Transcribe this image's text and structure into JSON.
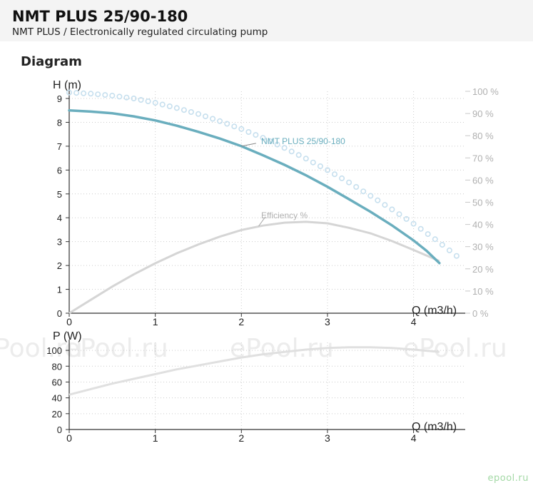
{
  "header": {
    "title": "NMT PLUS 25/90-180",
    "subtitle": "NMT PLUS / Electronically regulated circulating pump"
  },
  "section_title": "Diagram",
  "watermark": "ePool.ru",
  "brand": "epool.ru",
  "colors": {
    "head_curve": "#6aaebe",
    "max_curve_dots": "#c6dfee",
    "efficiency_curve": "#d5d5d5",
    "power_curve": "#e0e0e0",
    "axis": "#333333",
    "grid": "#cccccc",
    "right_axis_text": "#b0b0b0",
    "brand": "#a3d9a5"
  },
  "chart_data": [
    {
      "type": "line",
      "xlabel": "Q (m3/h)",
      "ylabel": "H (m)",
      "y2label": "",
      "xlim": [
        0,
        4.6
      ],
      "ylim": [
        0,
        9.3
      ],
      "y2lim": [
        0,
        100
      ],
      "xticks": [
        "0",
        "1",
        "2",
        "3",
        "4"
      ],
      "yticks": [
        "0",
        "1",
        "2",
        "3",
        "4",
        "5",
        "6",
        "7",
        "8",
        "9"
      ],
      "y2ticks": [
        "0 %",
        "10 %",
        "20 %",
        "30 %",
        "40 %",
        "50 %",
        "60 %",
        "70 %",
        "80 %",
        "90 %",
        "100 %"
      ],
      "grid": true,
      "series": [
        {
          "name": "NMT PLUS 25/90-180",
          "axis": "left",
          "style": "solid",
          "x": [
            0,
            0.25,
            0.5,
            0.75,
            1,
            1.25,
            1.5,
            1.75,
            2,
            2.25,
            2.5,
            2.75,
            3,
            3.25,
            3.5,
            3.75,
            4,
            4.15,
            4.3
          ],
          "y": [
            8.5,
            8.45,
            8.38,
            8.25,
            8.08,
            7.86,
            7.6,
            7.32,
            7.0,
            6.62,
            6.22,
            5.78,
            5.3,
            4.78,
            4.25,
            3.68,
            3.05,
            2.62,
            2.1
          ]
        },
        {
          "name": "",
          "axis": "left",
          "style": "dotted",
          "x": [
            0,
            0.25,
            0.5,
            0.75,
            1,
            1.25,
            1.5,
            1.75,
            2,
            2.25,
            2.5,
            2.75,
            3,
            3.25,
            3.5,
            3.75,
            4,
            4.25,
            4.5
          ],
          "y": [
            9.25,
            9.2,
            9.12,
            9.0,
            8.82,
            8.6,
            8.35,
            8.05,
            7.72,
            7.35,
            6.93,
            6.48,
            6.0,
            5.48,
            4.92,
            4.35,
            3.75,
            3.1,
            2.4
          ]
        },
        {
          "name": "Efficiency %",
          "axis": "right",
          "style": "solid",
          "x": [
            0,
            0.25,
            0.5,
            0.75,
            1,
            1.25,
            1.5,
            1.75,
            2,
            2.25,
            2.5,
            2.75,
            3,
            3.25,
            3.5,
            3.75,
            4,
            4.3
          ],
          "y": [
            0,
            6,
            12,
            17.5,
            22.5,
            27,
            31,
            34.5,
            37.5,
            39.5,
            40.8,
            41.2,
            40.5,
            38.5,
            36,
            32.5,
            28.5,
            23.5
          ]
        }
      ],
      "labels": [
        {
          "text": "NMT PLUS 25/90-180",
          "series": "NMT PLUS 25/90-180"
        },
        {
          "text": "Efficiency %",
          "series": "Efficiency %"
        }
      ]
    },
    {
      "type": "line",
      "xlabel": "Q (m3/h)",
      "ylabel": "P (W)",
      "xlim": [
        0,
        4.6
      ],
      "ylim": [
        0,
        110
      ],
      "xticks": [
        "0",
        "1",
        "2",
        "3",
        "4"
      ],
      "yticks": [
        "0",
        "20",
        "40",
        "60",
        "80",
        "100"
      ],
      "grid": true,
      "series": [
        {
          "name": "",
          "x": [
            0,
            0.25,
            0.5,
            0.75,
            1,
            1.25,
            1.5,
            1.75,
            2,
            2.25,
            2.5,
            2.75,
            3,
            3.25,
            3.5,
            3.75,
            4,
            4.3
          ],
          "y": [
            44,
            51,
            58,
            64,
            70,
            76,
            81,
            86,
            91,
            95,
            98,
            101,
            103,
            104,
            104,
            103,
            101,
            98
          ]
        }
      ]
    }
  ]
}
